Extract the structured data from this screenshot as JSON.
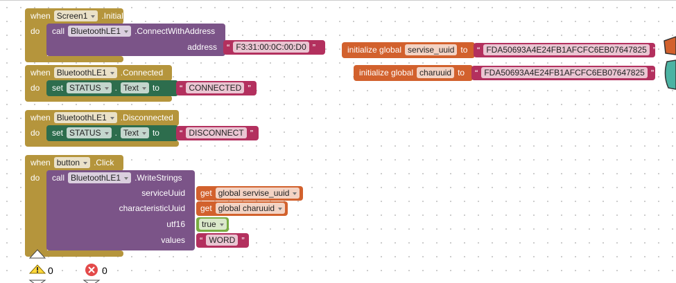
{
  "quote_open": "“",
  "quote_close": "”",
  "events": [
    {
      "when": "when",
      "component": "Screen1",
      "event": ".Initialize",
      "do": "do",
      "call": "call",
      "target": "BluetoothLE1",
      "method": ".ConnectWithAddress",
      "args": [
        {
          "name": "address",
          "value": "F3:31:00:0C:00:D0"
        }
      ]
    },
    {
      "when": "when",
      "component": "BluetoothLE1",
      "event": ".Connected",
      "do": "do",
      "set": "set",
      "set_component": "STATUS",
      "dot": ".",
      "property": "Text",
      "to": "to",
      "value": "CONNECTED"
    },
    {
      "when": "when",
      "component": "BluetoothLE1",
      "event": ".Disconnected",
      "do": "do",
      "set": "set",
      "set_component": "STATUS",
      "dot": ".",
      "property": "Text",
      "to": "to",
      "value": "DISCONNECT"
    },
    {
      "when": "when",
      "component": "button",
      "event": ".Click",
      "do": "do",
      "call": "call",
      "target": "BluetoothLE1",
      "method": ".WriteStrings",
      "args": [
        {
          "name": "serviceUuid",
          "get": "get",
          "value": "global servise_uuid"
        },
        {
          "name": "characteristicUuid",
          "get": "get",
          "value": "global charuuid"
        },
        {
          "name": "utf16",
          "value": "true"
        },
        {
          "name": "values",
          "value": "WORD"
        }
      ]
    }
  ],
  "globals": [
    {
      "initialize": "initialize global",
      "name": "servise_uuid",
      "to": "to",
      "value": "FDA50693A4E24FB1AFCFC6EB07647825"
    },
    {
      "initialize": "initialize global",
      "name": "charuuid",
      "to": "to",
      "value": "FDA50693A4E24FB1AFCFC6EB07647825"
    }
  ],
  "warnings": {
    "warning_count": 0,
    "error_count": 0
  }
}
